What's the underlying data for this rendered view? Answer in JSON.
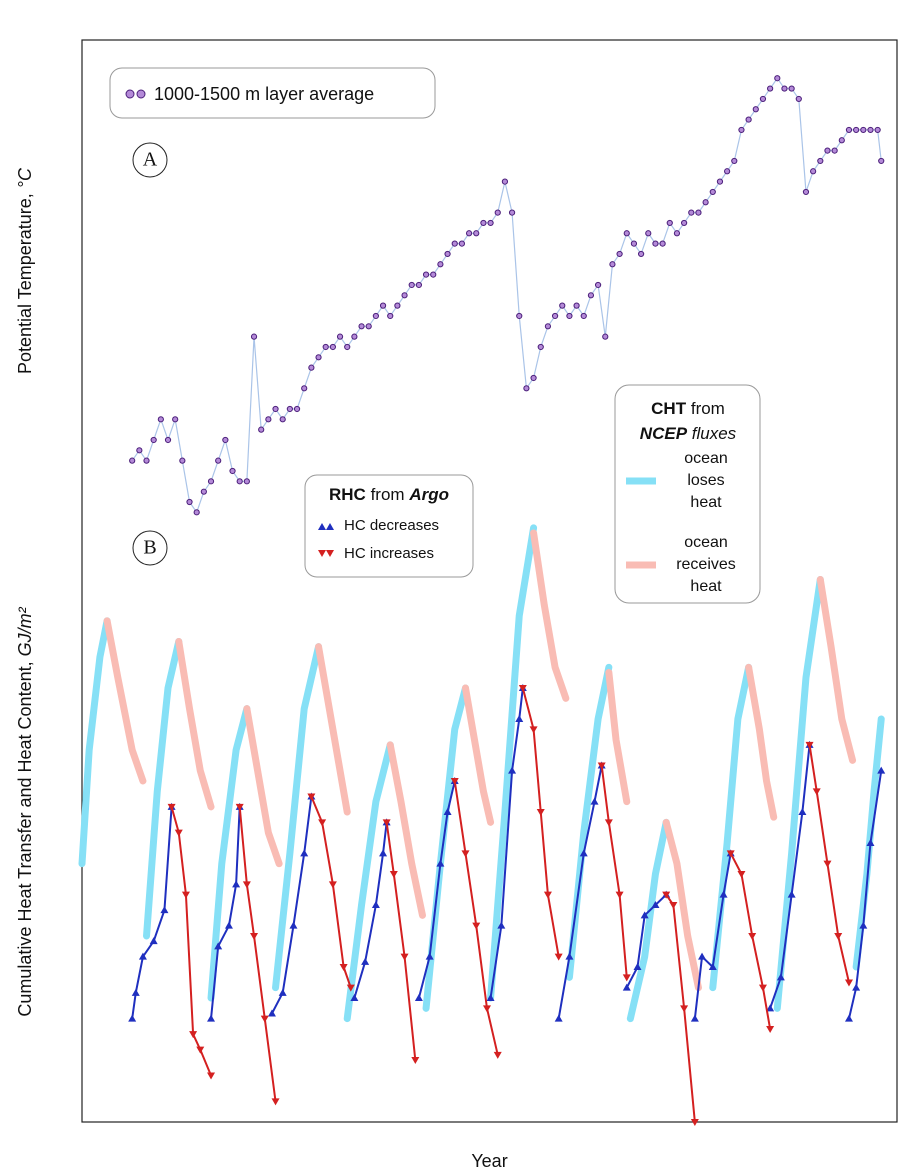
{
  "chart_data": [
    {
      "type": "line",
      "panel_label": "A",
      "ylabel": "Potential Temperature,",
      "ylabel_unit": "°C",
      "xlim": [
        2002,
        2013.37
      ],
      "xticks": [
        2002,
        2003,
        2004,
        2005,
        2006,
        2007,
        2008,
        2009,
        2010,
        2011,
        2012,
        2013
      ],
      "ylim": [
        3.2,
        3.647
      ],
      "yticks": [
        3.3,
        3.4,
        3.5,
        3.6
      ],
      "grid": true,
      "series": [
        {
          "name": "1000-1500 m layer average",
          "color": "#b48ad8",
          "edge_color": "#4b1f7a",
          "line_color": "#aac4e8",
          "marker": "circle",
          "x": [
            2002.7,
            2002.8,
            2002.9,
            2003.0,
            2003.1,
            2003.2,
            2003.3,
            2003.4,
            2003.5,
            2003.6,
            2003.7,
            2003.8,
            2003.9,
            2004.0,
            2004.1,
            2004.2,
            2004.3,
            2004.4,
            2004.5,
            2004.6,
            2004.7,
            2004.8,
            2004.9,
            2005.0,
            2005.1,
            2005.2,
            2005.3,
            2005.4,
            2005.5,
            2005.6,
            2005.7,
            2005.8,
            2005.9,
            2006.0,
            2006.1,
            2006.2,
            2006.3,
            2006.4,
            2006.5,
            2006.6,
            2006.7,
            2006.8,
            2006.9,
            2007.0,
            2007.1,
            2007.2,
            2007.3,
            2007.4,
            2007.5,
            2007.6,
            2007.7,
            2007.8,
            2007.9,
            2008.0,
            2008.1,
            2008.2,
            2008.3,
            2008.4,
            2008.5,
            2008.6,
            2008.7,
            2008.8,
            2008.9,
            2009.0,
            2009.1,
            2009.2,
            2009.3,
            2009.4,
            2009.5,
            2009.6,
            2009.7,
            2009.8,
            2009.9,
            2010.0,
            2010.1,
            2010.2,
            2010.3,
            2010.4,
            2010.5,
            2010.6,
            2010.7,
            2010.8,
            2010.9,
            2011.0,
            2011.1,
            2011.2,
            2011.3,
            2011.4,
            2011.5,
            2011.6,
            2011.7,
            2011.8,
            2011.9,
            2012.0,
            2012.1,
            2012.2,
            2012.3,
            2012.4,
            2012.5,
            2012.6,
            2012.7,
            2012.8,
            2012.9,
            2013.0,
            2013.1,
            2013.15
          ],
          "values": [
            3.24,
            3.25,
            3.24,
            3.26,
            3.28,
            3.26,
            3.28,
            3.24,
            3.2,
            3.19,
            3.21,
            3.22,
            3.24,
            3.26,
            3.23,
            3.22,
            3.22,
            3.36,
            3.27,
            3.28,
            3.29,
            3.28,
            3.29,
            3.29,
            3.31,
            3.33,
            3.34,
            3.35,
            3.35,
            3.36,
            3.35,
            3.36,
            3.37,
            3.37,
            3.38,
            3.39,
            3.38,
            3.39,
            3.4,
            3.41,
            3.41,
            3.42,
            3.42,
            3.43,
            3.44,
            3.45,
            3.45,
            3.46,
            3.46,
            3.47,
            3.47,
            3.48,
            3.51,
            3.48,
            3.38,
            3.31,
            3.32,
            3.35,
            3.37,
            3.38,
            3.39,
            3.38,
            3.39,
            3.38,
            3.4,
            3.41,
            3.36,
            3.43,
            3.44,
            3.46,
            3.45,
            3.44,
            3.46,
            3.45,
            3.45,
            3.47,
            3.46,
            3.47,
            3.48,
            3.48,
            3.49,
            3.5,
            3.51,
            3.52,
            3.53,
            3.56,
            3.57,
            3.58,
            3.59,
            3.6,
            3.61,
            3.6,
            3.6,
            3.59,
            3.5,
            3.52,
            3.53,
            3.54,
            3.54,
            3.55,
            3.56,
            3.56,
            3.56,
            3.56,
            3.56,
            3.53
          ]
        }
      ]
    },
    {
      "type": "line",
      "panel_label": "B",
      "ylabel": "Cumulative Heat Transfer and Heat Content,",
      "ylabel_unit": "GJ/m²",
      "xlabel": "Year",
      "xlim": [
        2002,
        2013.37
      ],
      "xticks": [
        2002,
        2003,
        2004,
        2005,
        2006,
        2007,
        2008,
        2009,
        2010,
        2011,
        2012,
        2013
      ],
      "ylim": [
        -1,
        5
      ],
      "yticks": [
        -1,
        0,
        1,
        2,
        3,
        4,
        5
      ],
      "grid": true,
      "cht_legend_title": [
        "CHT",
        "from",
        "NCEP",
        "fluxes"
      ],
      "rhc_legend_title": [
        "RHC",
        "from",
        "Argo"
      ],
      "series": [
        {
          "name": "ocean loses heat",
          "color": "#86e0f6",
          "x": [
            2002.0,
            2002.1,
            2002.25,
            2002.35,
            null,
            2002.9,
            2003.05,
            2003.2,
            2003.35,
            null,
            2003.8,
            2003.95,
            2004.15,
            2004.3,
            null,
            2004.7,
            2004.9,
            2005.1,
            2005.3,
            null,
            2005.7,
            2005.9,
            2006.1,
            2006.3,
            null,
            2006.8,
            2007.0,
            2007.2,
            2007.35,
            null,
            2007.7,
            2007.9,
            2008.1,
            2008.3,
            null,
            2008.8,
            2009.0,
            2009.2,
            2009.35,
            null,
            2009.65,
            2009.85,
            2010.0,
            2010.15,
            null,
            2010.8,
            2011.0,
            2011.15,
            2011.3,
            null,
            2011.7,
            2011.9,
            2012.1,
            2012.3,
            null,
            2012.8,
            2012.95,
            2013.05,
            2013.15
          ],
          "values": [
            1.5,
            2.6,
            3.5,
            3.85,
            null,
            0.8,
            2.2,
            3.2,
            3.65,
            null,
            0.2,
            1.5,
            2.6,
            3.0,
            null,
            0.3,
            1.6,
            3.0,
            3.6,
            null,
            0,
            1.1,
            2.1,
            2.65,
            null,
            0.1,
            1.5,
            2.8,
            3.2,
            null,
            0.2,
            2.0,
            3.9,
            4.75,
            null,
            0.4,
            1.8,
            2.9,
            3.4,
            null,
            0,
            0.6,
            1.4,
            1.9,
            null,
            0.3,
            1.7,
            2.9,
            3.4,
            null,
            0.1,
            1.6,
            3.3,
            4.25,
            null,
            0.5,
            1.4,
            2.2,
            2.9
          ]
        },
        {
          "name": "ocean receives heat",
          "color": "#f9bcb4",
          "x": [
            2002.35,
            2002.5,
            2002.7,
            2002.85,
            null,
            2003.35,
            2003.5,
            2003.65,
            2003.8,
            null,
            2004.3,
            2004.45,
            2004.6,
            2004.75,
            null,
            2005.3,
            2005.45,
            2005.6,
            2005.7,
            null,
            2006.3,
            2006.45,
            2006.6,
            2006.75,
            null,
            2007.35,
            2007.5,
            2007.6,
            2007.7,
            null,
            2008.3,
            2008.45,
            2008.6,
            2008.75,
            null,
            2009.35,
            2009.45,
            2009.6,
            null,
            2010.15,
            2010.3,
            2010.45,
            2010.6,
            null,
            2011.3,
            2011.45,
            2011.55,
            2011.65,
            null,
            2012.3,
            2012.45,
            2012.6,
            2012.75
          ],
          "values": [
            3.85,
            3.3,
            2.6,
            2.3,
            null,
            3.65,
            3.0,
            2.4,
            2.05,
            null,
            3.0,
            2.4,
            1.8,
            1.5,
            null,
            3.6,
            3.0,
            2.4,
            2.0,
            null,
            2.65,
            2.1,
            1.5,
            1.0,
            null,
            3.2,
            2.6,
            2.2,
            1.9,
            null,
            4.7,
            4.0,
            3.4,
            3.1,
            null,
            3.35,
            2.7,
            2.1,
            null,
            1.9,
            1.5,
            0.8,
            0.3,
            null,
            3.4,
            2.8,
            2.3,
            1.95,
            null,
            4.25,
            3.6,
            2.9,
            2.5
          ]
        },
        {
          "name": "HC decreases",
          "color": "#1f2fbf",
          "marker": "triangle-up",
          "x": [
            2002.7,
            2002.75,
            2002.85,
            2003.0,
            2003.15,
            2003.25,
            null,
            2003.8,
            2003.9,
            2004.05,
            2004.15,
            2004.2,
            null,
            2004.65,
            2004.8,
            2004.95,
            2005.1,
            2005.2,
            null,
            2005.8,
            2005.95,
            2006.1,
            2006.2,
            2006.25,
            null,
            2006.7,
            2006.85,
            2007.0,
            2007.1,
            2007.2,
            null,
            2007.7,
            2007.85,
            2008.0,
            2008.1,
            2008.15,
            null,
            2008.65,
            2008.8,
            2009.0,
            2009.15,
            2009.25,
            null,
            2009.6,
            2009.75,
            2009.85,
            2010.0,
            2010.15,
            null,
            2010.55,
            2010.65,
            2010.8,
            2010.95,
            2011.05,
            null,
            2011.6,
            2011.75,
            2011.9,
            2012.05,
            2012.15,
            null,
            2012.7,
            2012.8,
            2012.9,
            2013.0,
            2013.15
          ],
          "values": [
            0,
            0.25,
            0.6,
            0.75,
            1.05,
            2.05,
            null,
            0,
            0.7,
            0.9,
            1.3,
            2.05,
            null,
            0.05,
            0.25,
            0.9,
            1.6,
            2.15,
            null,
            0.2,
            0.55,
            1.1,
            1.6,
            1.9,
            null,
            0.2,
            0.6,
            1.5,
            2.0,
            2.3,
            null,
            0.2,
            0.9,
            2.4,
            2.9,
            3.2,
            null,
            0,
            0.6,
            1.6,
            2.1,
            2.45,
            null,
            0.3,
            0.5,
            1.0,
            1.1,
            1.2,
            null,
            0,
            0.6,
            0.5,
            1.2,
            1.6,
            null,
            0.1,
            0.4,
            1.2,
            2.0,
            2.65,
            null,
            0,
            0.3,
            0.9,
            1.7,
            2.4
          ]
        },
        {
          "name": "HC increases",
          "color": "#d42020",
          "marker": "triangle-down",
          "x": [
            2003.25,
            2003.35,
            2003.45,
            2003.55,
            2003.65,
            2003.8,
            null,
            2004.2,
            2004.3,
            2004.4,
            2004.55,
            2004.7,
            null,
            2005.2,
            2005.35,
            2005.5,
            2005.65,
            2005.75,
            null,
            2006.25,
            2006.35,
            2006.5,
            2006.65,
            null,
            2007.2,
            2007.35,
            2007.5,
            2007.65,
            2007.8,
            null,
            2008.15,
            2008.3,
            2008.4,
            2008.5,
            2008.65,
            null,
            2009.25,
            2009.35,
            2009.5,
            2009.6,
            null,
            2010.15,
            2010.25,
            2010.4,
            2010.55,
            null,
            2011.05,
            2011.2,
            2011.35,
            2011.5,
            2011.6,
            null,
            2012.15,
            2012.25,
            2012.4,
            2012.55,
            2012.7
          ],
          "values": [
            2.05,
            1.8,
            1.2,
            -0.15,
            -0.3,
            -0.55,
            null,
            2.05,
            1.3,
            0.8,
            0,
            -0.8,
            null,
            2.15,
            1.9,
            1.3,
            0.5,
            0.3,
            null,
            1.9,
            1.4,
            0.6,
            -0.4,
            null,
            2.3,
            1.6,
            0.9,
            0.1,
            -0.35,
            null,
            3.2,
            2.8,
            2.0,
            1.2,
            0.6,
            null,
            2.45,
            1.9,
            1.2,
            0.4,
            null,
            1.2,
            1.1,
            0.1,
            -1,
            null,
            1.6,
            1.4,
            0.8,
            0.3,
            -0.1,
            null,
            2.65,
            2.2,
            1.5,
            0.8,
            0.35
          ]
        }
      ]
    }
  ]
}
